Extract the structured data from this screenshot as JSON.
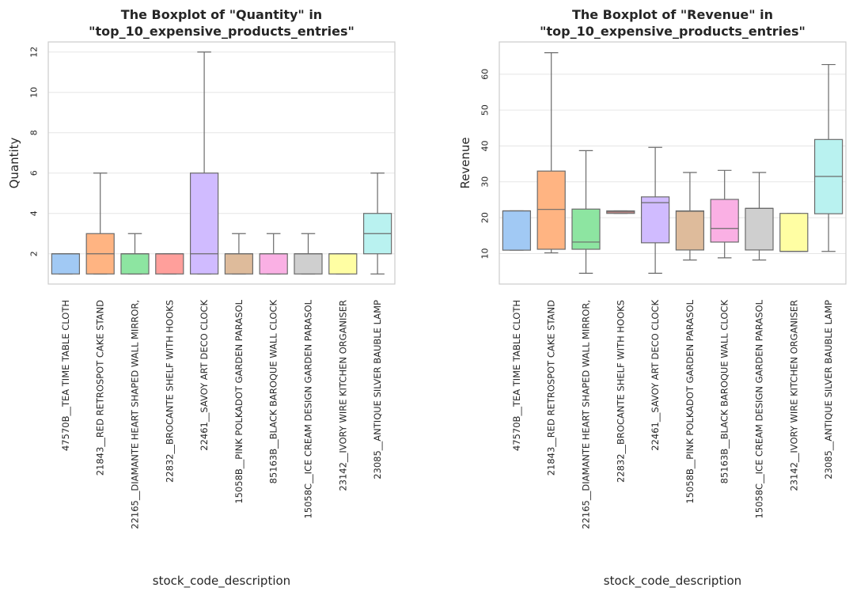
{
  "chart_data": [
    {
      "type": "boxplot",
      "title_line1": "The Boxplot of \"Quantity\" in",
      "title_line2": "\"top_10_expensive_products_entries\"",
      "xlabel": "stock_code_description",
      "ylabel": "Quantity",
      "ylim": [
        0.5,
        12.5
      ],
      "yticks": [
        2,
        4,
        6,
        8,
        10,
        12
      ],
      "grid": true,
      "categories": [
        "47570B__TEA TIME TABLE CLOTH",
        "21843__RED RETROSPOT CAKE STAND",
        "22165__DIAMANTE HEART SHAPED WALL MIRROR,",
        "22832__BROCANTE SHELF WITH HOOKS",
        "22461__SAVOY ART DECO CLOCK",
        "15058B__PINK POLKADOT GARDEN PARASOL",
        "85163B__BLACK BAROQUE WALL CLOCK",
        "15058C__ICE CREAM DESIGN GARDEN PARASOL",
        "23142__IVORY WIRE KITCHEN ORGANISER",
        "23085__ANTIQUE SILVER BAUBLE LAMP"
      ],
      "boxes": [
        {
          "whislo": 1,
          "q1": 1,
          "med": 2,
          "q3": 2,
          "whishi": 2
        },
        {
          "whislo": 1,
          "q1": 1,
          "med": 2,
          "q3": 3,
          "whishi": 6
        },
        {
          "whislo": 1,
          "q1": 1,
          "med": 2,
          "q3": 2,
          "whishi": 3
        },
        {
          "whislo": 1,
          "q1": 1,
          "med": 2,
          "q3": 2,
          "whishi": 2
        },
        {
          "whislo": 1,
          "q1": 1,
          "med": 2,
          "q3": 6,
          "whishi": 12
        },
        {
          "whislo": 1,
          "q1": 1,
          "med": 2,
          "q3": 2,
          "whishi": 3
        },
        {
          "whislo": 1,
          "q1": 1,
          "med": 2,
          "q3": 2,
          "whishi": 3
        },
        {
          "whislo": 1,
          "q1": 1,
          "med": 2,
          "q3": 2,
          "whishi": 3
        },
        {
          "whislo": 1,
          "q1": 1,
          "med": 2,
          "q3": 2,
          "whishi": 2
        },
        {
          "whislo": 1,
          "q1": 2,
          "med": 3,
          "q3": 4,
          "whishi": 6
        }
      ]
    },
    {
      "type": "boxplot",
      "title_line1": "The Boxplot of \"Revenue\" in",
      "title_line2": "\"top_10_expensive_products_entries\"",
      "xlabel": "stock_code_description",
      "ylabel": "Revenue",
      "ylim": [
        1.5,
        69
      ],
      "yticks": [
        10,
        20,
        30,
        40,
        50,
        60
      ],
      "grid": true,
      "categories": [
        "47570B__TEA TIME TABLE CLOTH",
        "21843__RED RETROSPOT CAKE STAND",
        "22165__DIAMANTE HEART SHAPED WALL MIRROR,",
        "22832__BROCANTE SHELF WITH HOOKS",
        "22461__SAVOY ART DECO CLOCK",
        "15058B__PINK POLKADOT GARDEN PARASOL",
        "85163B__BLACK BAROQUE WALL CLOCK",
        "15058C__ICE CREAM DESIGN GARDEN PARASOL",
        "23142__IVORY WIRE KITCHEN ORGANISER",
        "23085__ANTIQUE SILVER BAUBLE LAMP"
      ],
      "boxes": [
        {
          "whislo": 10.95,
          "q1": 10.95,
          "med": 21.9,
          "q3": 21.9,
          "whishi": 21.9
        },
        {
          "whislo": 10.2,
          "q1": 11.2,
          "med": 22.3,
          "q3": 33.0,
          "whishi": 66.0
        },
        {
          "whislo": 4.5,
          "q1": 11.2,
          "med": 13.2,
          "q3": 22.4,
          "whishi": 38.7
        },
        {
          "whislo": 21.2,
          "q1": 21.2,
          "med": 21.6,
          "q3": 21.9,
          "whishi": 21.9
        },
        {
          "whislo": 4.5,
          "q1": 13.0,
          "med": 24.2,
          "q3": 25.8,
          "whishi": 39.6
        },
        {
          "whislo": 8.2,
          "q1": 11.0,
          "med": 21.8,
          "q3": 21.9,
          "whishi": 32.6
        },
        {
          "whislo": 8.8,
          "q1": 13.2,
          "med": 17.0,
          "q3": 25.1,
          "whishi": 33.2
        },
        {
          "whislo": 8.2,
          "q1": 11.0,
          "med": 22.6,
          "q3": 22.6,
          "whishi": 32.6
        },
        {
          "whislo": 10.6,
          "q1": 10.6,
          "med": 10.6,
          "q3": 21.2,
          "whishi": 21.2
        },
        {
          "whislo": 10.6,
          "q1": 21.1,
          "med": 31.5,
          "q3": 41.8,
          "whishi": 62.7
        }
      ]
    }
  ],
  "palette": [
    "#a1c9f4",
    "#ffb482",
    "#8de5a1",
    "#ff9f9b",
    "#d0bbff",
    "#debb9b",
    "#fab0e4",
    "#cfcfcf",
    "#fffea3",
    "#b9f2f0"
  ],
  "line_color": "#6b6b6b",
  "grid_color": "#e6e6e6",
  "frame_color": "#cccccc"
}
